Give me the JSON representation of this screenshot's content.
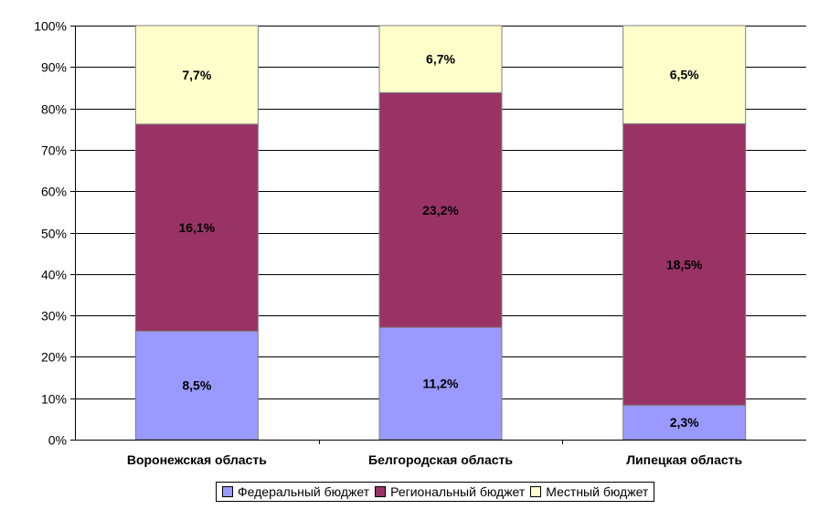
{
  "chart_data": {
    "type": "bar",
    "stacked": "percent",
    "categories": [
      "Воронежская область",
      "Белгородская область",
      "Липецкая область"
    ],
    "series": [
      {
        "name": "Федеральный бюджет",
        "color": "#9999ff",
        "values": [
          26.2,
          27.1,
          8.3
        ],
        "labels": [
          "8,5%",
          "11,2%",
          "2,3%"
        ]
      },
      {
        "name": "Региональный бюджет",
        "color": "#993366",
        "values": [
          50.0,
          56.7,
          68.0
        ],
        "labels": [
          "16,1%",
          "23,2%",
          "18,5%"
        ]
      },
      {
        "name": "Местный бюджет",
        "color": "#ffffcc",
        "values": [
          23.8,
          16.2,
          23.7
        ],
        "labels": [
          "7,7%",
          "6,7%",
          "6,5%"
        ]
      }
    ],
    "yticks": [
      "0%",
      "10%",
      "20%",
      "30%",
      "40%",
      "50%",
      "60%",
      "70%",
      "80%",
      "90%",
      "100%"
    ],
    "ylim": [
      0,
      100
    ],
    "grid": true,
    "legend_position": "bottom"
  }
}
